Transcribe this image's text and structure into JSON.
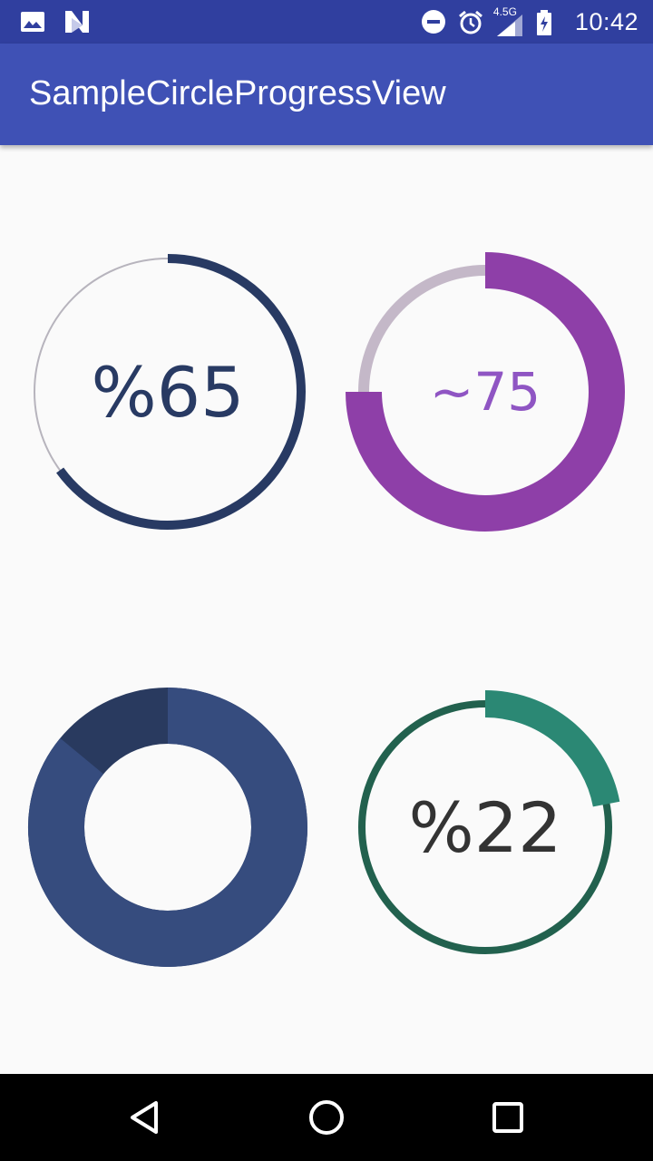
{
  "status_bar": {
    "time": "10:42",
    "network": "4.5G",
    "left_icons": [
      "gallery-icon",
      "n-notification-icon"
    ],
    "right_icons": [
      "do-not-disturb-icon",
      "alarm-icon",
      "signal-icon",
      "battery-charging-icon"
    ]
  },
  "app_bar": {
    "title": "SampleCircleProgressView",
    "color": "#3f51b5",
    "status_color": "#303f9f"
  },
  "progress_views": [
    {
      "id": "progress-65",
      "label": "%65",
      "progress": 0.65,
      "style": "thin-track-thick-arc",
      "track_color": "#b7b4bd",
      "progress_color": "#283a63",
      "text_color": "#283a63"
    },
    {
      "id": "progress-75",
      "label": "~75",
      "progress": 0.75,
      "style": "thick-arc",
      "track_color": "#c4b8c8",
      "progress_color": "#8e3fa8",
      "text_color": "#8f55c3"
    },
    {
      "id": "progress-donut",
      "label": "",
      "progress": 0.86,
      "style": "filled-donut",
      "track_color": "#293a5f",
      "progress_color": "#364c7e"
    },
    {
      "id": "progress-22",
      "label": "%22",
      "progress": 0.22,
      "style": "thick-arc",
      "track_color": "#22614e",
      "progress_color": "#2b8874",
      "text_color": "#333333"
    }
  ],
  "nav_bar": {
    "buttons": [
      "back-button",
      "home-button",
      "recents-button"
    ]
  }
}
